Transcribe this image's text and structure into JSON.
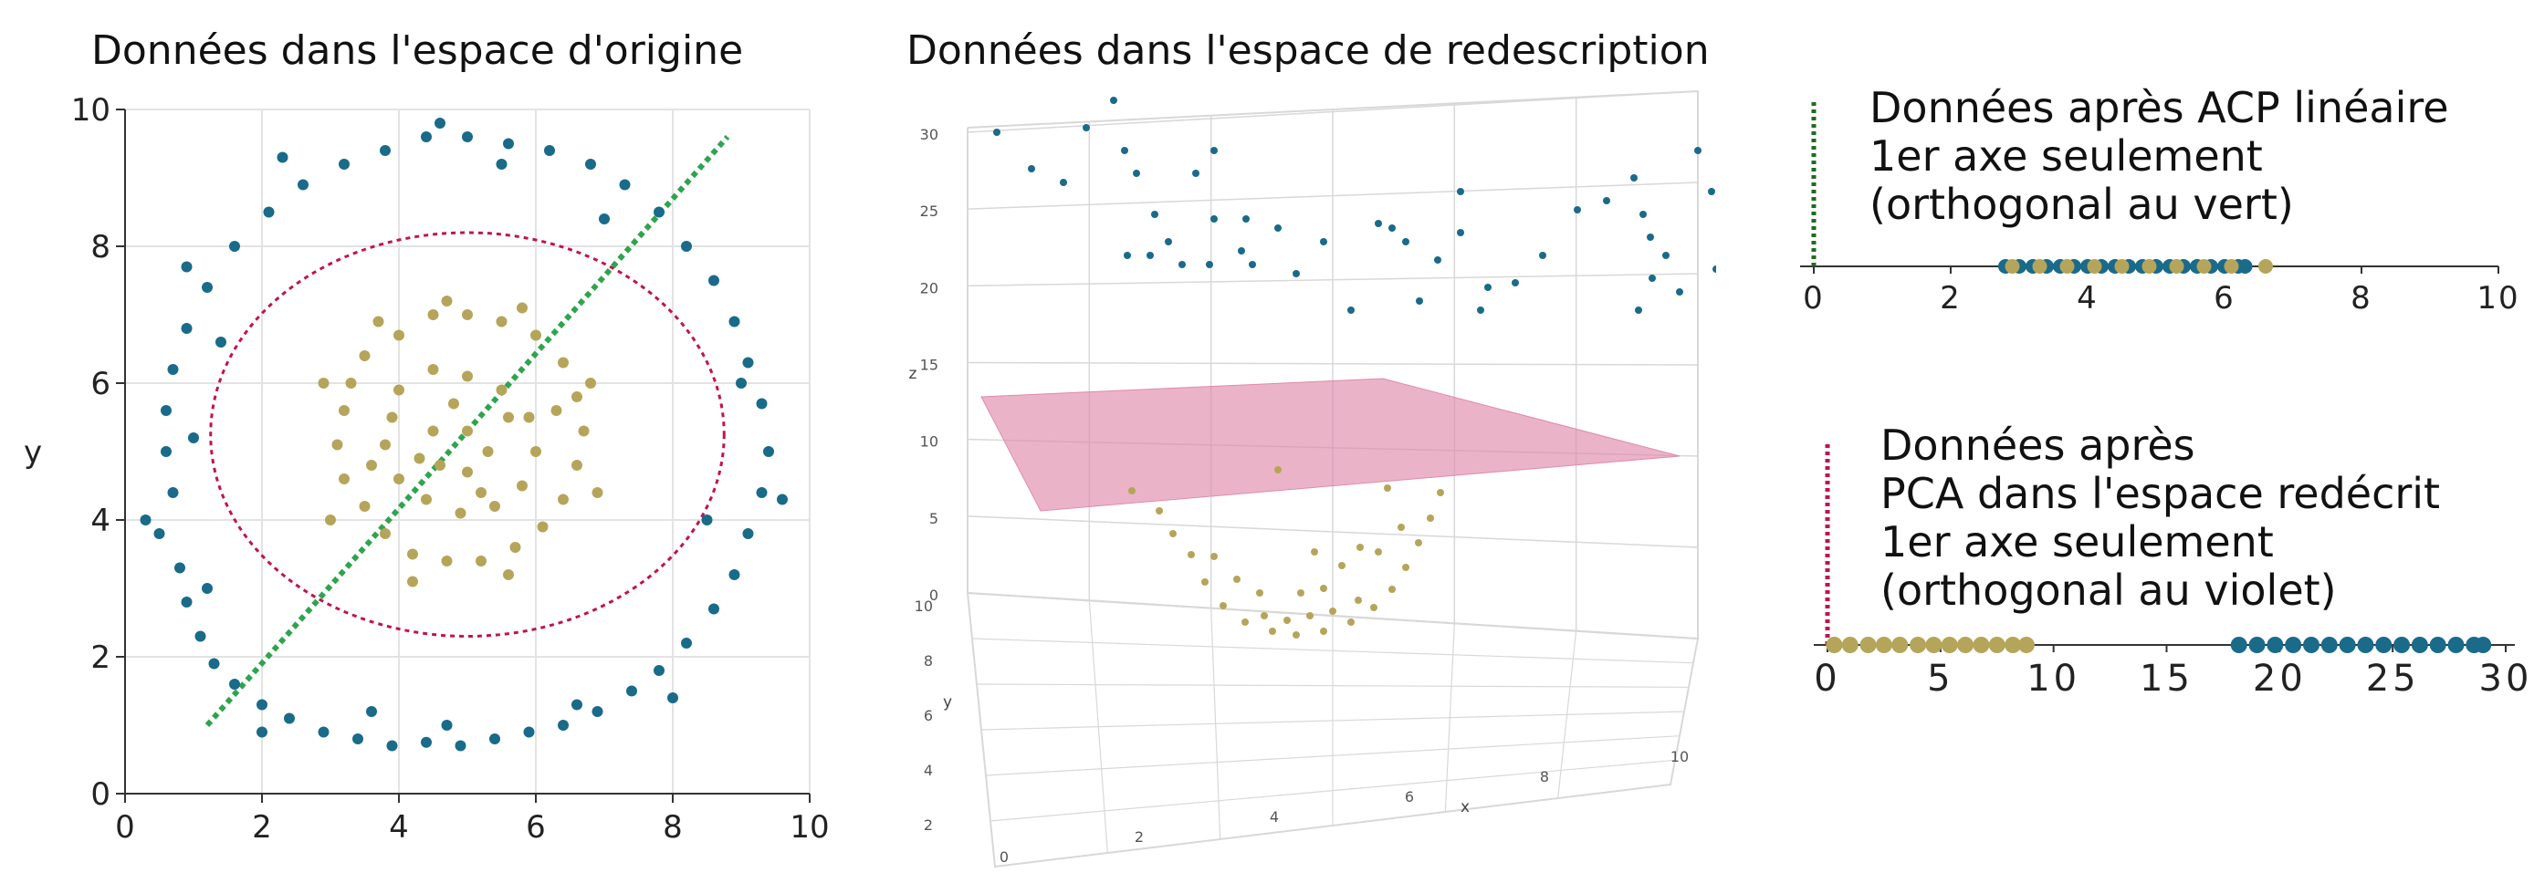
{
  "colors": {
    "outer": "#1a6a8a",
    "inner": "#b5a55a",
    "green": "#2ea44f",
    "darkgreen": "#1f6b1f",
    "crimson": "#c0134e",
    "plane": "#e08aab"
  },
  "panel1": {
    "title": "Données dans l'espace d'origine",
    "ylabel": "y"
  },
  "panel2": {
    "title": "Données dans l'espace de redescription",
    "zlabel": "z",
    "ylabel": "y",
    "xlabel": "x"
  },
  "panel3": {
    "lines": [
      "Données après ACP linéaire",
      "1er axe seulement",
      "(orthogonal au vert)"
    ]
  },
  "panel4": {
    "lines": [
      "Données après",
      "PCA dans l'espace redécrit",
      "1er axe seulement",
      "(orthogonal au violet)"
    ]
  },
  "chart_data": [
    {
      "type": "scatter",
      "title": "Données dans l'espace d'origine",
      "xlabel": "",
      "ylabel": "y",
      "xlim": [
        0,
        10
      ],
      "ylim": [
        0,
        10
      ],
      "x_ticks": [
        "0",
        "2",
        "4",
        "6",
        "8",
        "10"
      ],
      "y_ticks": [
        "0",
        "2",
        "4",
        "6",
        "8",
        "10"
      ],
      "grid": true,
      "series": [
        {
          "points": [
            [
              0.6,
              5.0
            ],
            [
              0.7,
              4.4
            ],
            [
              0.5,
              3.8
            ],
            [
              0.8,
              3.3
            ],
            [
              0.9,
              2.8
            ],
            [
              1.1,
              2.3
            ],
            [
              1.3,
              1.9
            ],
            [
              1.6,
              1.6
            ],
            [
              2.0,
              1.3
            ],
            [
              2.4,
              1.1
            ],
            [
              2.9,
              0.9
            ],
            [
              3.4,
              0.8
            ],
            [
              3.9,
              0.7
            ],
            [
              4.4,
              0.75
            ],
            [
              4.9,
              0.7
            ],
            [
              5.4,
              0.8
            ],
            [
              5.9,
              0.9
            ],
            [
              6.4,
              1.0
            ],
            [
              6.9,
              1.2
            ],
            [
              7.4,
              1.5
            ],
            [
              7.8,
              1.8
            ],
            [
              8.2,
              2.2
            ],
            [
              8.6,
              2.7
            ],
            [
              8.9,
              3.2
            ],
            [
              9.1,
              3.8
            ],
            [
              9.3,
              4.4
            ],
            [
              9.4,
              5.0
            ],
            [
              9.3,
              5.7
            ],
            [
              9.1,
              6.3
            ],
            [
              8.9,
              6.9
            ],
            [
              8.6,
              7.5
            ],
            [
              8.2,
              8.0
            ],
            [
              7.8,
              8.5
            ],
            [
              7.3,
              8.9
            ],
            [
              6.8,
              9.2
            ],
            [
              6.2,
              9.4
            ],
            [
              5.6,
              9.5
            ],
            [
              5.0,
              9.6
            ],
            [
              4.4,
              9.6
            ],
            [
              3.8,
              9.4
            ],
            [
              3.2,
              9.2
            ],
            [
              2.6,
              8.9
            ],
            [
              2.1,
              8.5
            ],
            [
              1.6,
              8.0
            ],
            [
              1.2,
              7.4
            ],
            [
              0.9,
              6.8
            ],
            [
              0.7,
              6.2
            ],
            [
              0.6,
              5.6
            ],
            [
              0.3,
              4.0
            ],
            [
              1.2,
              3.0
            ],
            [
              2.0,
              0.9
            ],
            [
              4.7,
              1.0
            ],
            [
              6.6,
              1.3
            ],
            [
              9.6,
              4.3
            ],
            [
              9.0,
              6.0
            ],
            [
              4.6,
              9.8
            ],
            [
              2.3,
              9.3
            ],
            [
              0.9,
              7.7
            ],
            [
              1.4,
              6.6
            ],
            [
              1.0,
              5.2
            ],
            [
              8.0,
              1.4
            ],
            [
              3.6,
              1.2
            ],
            [
              5.5,
              9.2
            ],
            [
              7.0,
              8.4
            ],
            [
              8.5,
              4.0
            ]
          ],
          "name": ""
        },
        {
          "points": [
            [
              3.5,
              6.4
            ],
            [
              4.0,
              6.7
            ],
            [
              4.5,
              7.0
            ],
            [
              5.0,
              7.0
            ],
            [
              5.5,
              6.9
            ],
            [
              6.0,
              6.7
            ],
            [
              6.4,
              6.3
            ],
            [
              6.6,
              5.8
            ],
            [
              6.7,
              5.3
            ],
            [
              6.6,
              4.8
            ],
            [
              6.4,
              4.3
            ],
            [
              6.1,
              3.9
            ],
            [
              5.7,
              3.6
            ],
            [
              5.2,
              3.4
            ],
            [
              4.7,
              3.4
            ],
            [
              4.2,
              3.5
            ],
            [
              3.8,
              3.8
            ],
            [
              3.5,
              4.2
            ],
            [
              3.2,
              4.6
            ],
            [
              3.1,
              5.1
            ],
            [
              3.2,
              5.6
            ],
            [
              3.3,
              6.0
            ],
            [
              4.0,
              5.9
            ],
            [
              4.5,
              6.2
            ],
            [
              5.0,
              6.1
            ],
            [
              5.5,
              5.9
            ],
            [
              5.9,
              5.5
            ],
            [
              6.0,
              5.0
            ],
            [
              5.8,
              4.5
            ],
            [
              5.4,
              4.2
            ],
            [
              4.9,
              4.1
            ],
            [
              4.4,
              4.3
            ],
            [
              4.0,
              4.6
            ],
            [
              3.8,
              5.1
            ],
            [
              3.9,
              5.5
            ],
            [
              4.5,
              5.3
            ],
            [
              5.0,
              5.3
            ],
            [
              5.3,
              5.0
            ],
            [
              5.0,
              4.7
            ],
            [
              4.6,
              4.8
            ],
            [
              2.9,
              6.0
            ],
            [
              3.0,
              4.0
            ],
            [
              4.2,
              3.1
            ],
            [
              5.6,
              3.2
            ],
            [
              6.9,
              4.4
            ],
            [
              6.8,
              6.0
            ],
            [
              5.8,
              7.1
            ],
            [
              4.7,
              7.2
            ],
            [
              3.7,
              6.9
            ],
            [
              4.8,
              5.7
            ],
            [
              5.6,
              5.5
            ],
            [
              4.3,
              4.9
            ],
            [
              5.2,
              4.4
            ],
            [
              3.6,
              4.8
            ],
            [
              6.3,
              5.6
            ]
          ],
          "name": ""
        }
      ]
    },
    {
      "type": "scatter",
      "title": "Données dans l'espace de redescription",
      "xlabel": "x",
      "ylabel": "y",
      "zlabel": "z",
      "z_ticks": [
        "0",
        "5",
        "10",
        "15",
        "20",
        "25",
        "30"
      ],
      "y_ticks": [
        "0",
        "2",
        "4",
        "6",
        "8",
        "10"
      ],
      "x_ticks": [
        "0",
        "2",
        "4",
        "6",
        "8",
        "10"
      ]
    },
    {
      "type": "scatter",
      "title": "",
      "xlim": [
        0,
        10
      ],
      "x_ticks": [
        "0",
        "2",
        "4",
        "6",
        "8",
        "10"
      ],
      "series": [
        {
          "values": [
            2.8,
            3.0,
            3.2,
            3.4,
            3.6,
            3.8,
            4.0,
            4.2,
            4.4,
            4.6,
            4.8,
            5.0,
            5.2,
            5.4,
            5.6,
            5.8,
            6.0,
            6.2,
            6.3
          ],
          "name": ""
        },
        {
          "values": [
            2.9,
            3.3,
            3.7,
            4.1,
            4.5,
            4.9,
            5.3,
            5.7,
            6.1,
            6.6
          ],
          "name": ""
        }
      ]
    },
    {
      "type": "scatter",
      "title": "",
      "xlim": [
        0,
        30
      ],
      "x_ticks": [
        "0",
        "5",
        "10",
        "15",
        "20",
        "25",
        "30"
      ],
      "series": [
        {
          "values": [
            0.3,
            1.0,
            1.8,
            2.5,
            3.2,
            4.0,
            4.7,
            5.4,
            6.1,
            6.8,
            7.5,
            8.2,
            8.8
          ],
          "name": ""
        },
        {
          "values": [
            18.2,
            19.0,
            19.8,
            20.6,
            21.4,
            22.2,
            23.0,
            23.8,
            24.6,
            25.4,
            26.2,
            27.0,
            27.8,
            28.6,
            29.0
          ],
          "name": ""
        }
      ]
    }
  ]
}
